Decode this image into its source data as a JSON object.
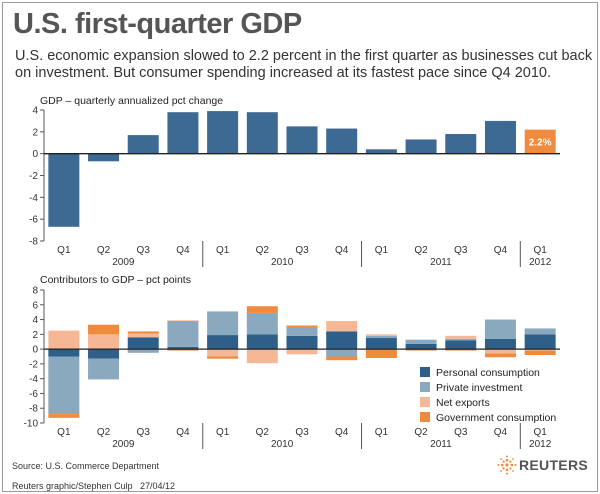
{
  "header": {
    "title": "U.S. first-quarter GDP",
    "subtitle": "U.S. economic expansion slowed to 2.2 percent in the first quarter as businesses cut back on investment. But consumer spending increased at its fastest pace since Q4 2010."
  },
  "footer": {
    "source": "Source: U.S. Commerce Department",
    "credit": "Reuters graphic/Stephen Culp",
    "date": "27/04/12",
    "logo_text": "REUTERS"
  },
  "colors": {
    "gdp_bar": "#3d6a93",
    "highlight": "#f08a3c",
    "personal_consumption": "#2e5f88",
    "private_investment": "#8aa8be",
    "net_exports": "#f6b894",
    "government_consumption": "#f08a3c"
  },
  "chart_data": [
    {
      "type": "bar",
      "title": "GDP – quarterly annualized pct change",
      "categories": [
        "Q1",
        "Q2",
        "Q3",
        "Q4",
        "Q1",
        "Q2",
        "Q3",
        "Q4",
        "Q1",
        "Q2",
        "Q3",
        "Q4",
        "Q1"
      ],
      "year_labels": [
        "2009",
        "2010",
        "2011",
        "2012"
      ],
      "values": [
        -6.7,
        -0.7,
        1.7,
        3.8,
        3.9,
        3.8,
        2.5,
        2.3,
        0.4,
        1.3,
        1.8,
        3.0,
        2.2
      ],
      "highlight_label": "2.2%",
      "ylim": [
        -8,
        4
      ],
      "yticks": [
        4,
        2,
        0,
        -2,
        -4,
        -6,
        -8
      ]
    },
    {
      "type": "bar",
      "stacked": true,
      "title": "Contributors to GDP – pct points",
      "categories": [
        "Q1",
        "Q2",
        "Q3",
        "Q4",
        "Q1",
        "Q2",
        "Q3",
        "Q4",
        "Q1",
        "Q2",
        "Q3",
        "Q4",
        "Q1"
      ],
      "year_labels": [
        "2009",
        "2010",
        "2011",
        "2012"
      ],
      "ylim": [
        -10,
        8
      ],
      "yticks": [
        8,
        6,
        4,
        2,
        0,
        -2,
        -4,
        -6,
        -8,
        -10
      ],
      "legend": "bottom-right",
      "series": [
        {
          "name": "Personal consumption",
          "values": [
            -1.0,
            -1.3,
            1.6,
            0.3,
            1.9,
            2.0,
            1.8,
            2.4,
            1.5,
            0.7,
            1.2,
            1.4,
            2.0
          ]
        },
        {
          "name": "Private investment",
          "values": [
            -7.8,
            -2.8,
            -0.5,
            3.5,
            3.2,
            2.9,
            1.2,
            -1.0,
            0.3,
            0.6,
            0.2,
            2.6,
            0.8
          ]
        },
        {
          "name": "Net exports",
          "values": [
            2.5,
            2.0,
            0.5,
            0.1,
            -1.0,
            -1.9,
            -0.7,
            1.4,
            0.2,
            0.0,
            0.4,
            -0.6,
            -0.2
          ]
        },
        {
          "name": "Government consumption",
          "values": [
            -0.5,
            1.3,
            0.3,
            -0.2,
            -0.3,
            0.9,
            0.2,
            -0.5,
            -1.2,
            -0.2,
            -0.2,
            -0.5,
            -0.6
          ]
        }
      ]
    }
  ]
}
